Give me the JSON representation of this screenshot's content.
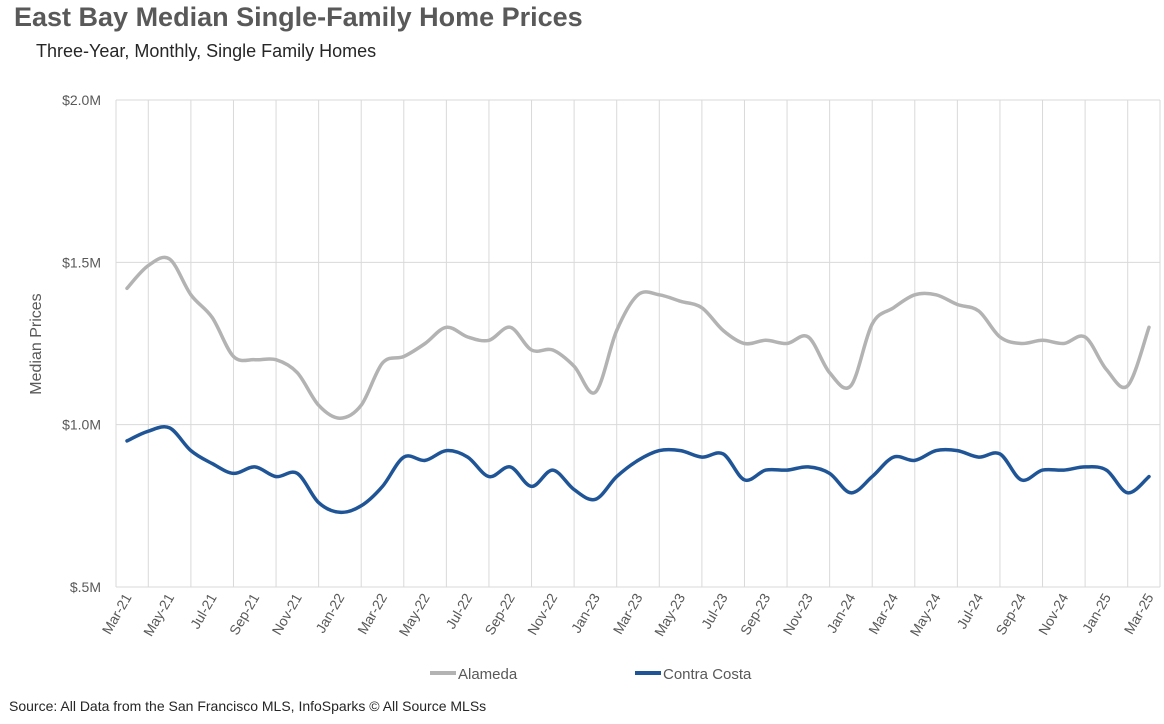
{
  "title": "East Bay Median Single-Family Home Prices",
  "subtitle": "Three-Year, Monthly, Single Family Homes",
  "source": "Source: All Data from the San Francisco MLS, InfoSparks © All Source MLSs",
  "chart_data": {
    "type": "line",
    "ylabel": "Median Prices",
    "ylim": [
      500000,
      2000000
    ],
    "y_ticks": [
      {
        "value": 500000,
        "label": "$.5M"
      },
      {
        "value": 1000000,
        "label": "$1.0M"
      },
      {
        "value": 1500000,
        "label": "$1.5M"
      },
      {
        "value": 2000000,
        "label": "$2.0M"
      }
    ],
    "x": [
      "Mar-21",
      "Apr-21",
      "May-21",
      "Jun-21",
      "Jul-21",
      "Aug-21",
      "Sep-21",
      "Oct-21",
      "Nov-21",
      "Dec-21",
      "Jan-22",
      "Feb-22",
      "Mar-22",
      "Apr-22",
      "May-22",
      "Jun-22",
      "Jul-22",
      "Aug-22",
      "Sep-22",
      "Oct-22",
      "Nov-22",
      "Dec-22",
      "Jan-23",
      "Feb-23",
      "Mar-23",
      "Apr-23",
      "May-23",
      "Jun-23",
      "Jul-23",
      "Aug-23",
      "Sep-23",
      "Oct-23",
      "Nov-23",
      "Dec-23",
      "Jan-24",
      "Feb-24",
      "Mar-24",
      "Apr-24",
      "May-24",
      "Jun-24",
      "Jul-24",
      "Aug-24",
      "Sep-24",
      "Oct-24",
      "Nov-24",
      "Dec-24",
      "Jan-25",
      "Feb-25",
      "Mar-25"
    ],
    "x_tick_labels": [
      "Mar-21",
      "May-21",
      "Jul-21",
      "Sep-21",
      "Nov-21",
      "Jan-22",
      "Mar-22",
      "May-22",
      "Jul-22",
      "Sep-22",
      "Nov-22",
      "Jan-23",
      "Mar-23",
      "May-23",
      "Jul-23",
      "Sep-23",
      "Nov-23",
      "Jan-24",
      "Mar-24",
      "May-24",
      "Jul-24",
      "Sep-24",
      "Nov-24",
      "Jan-25",
      "Mar-25"
    ],
    "grid": "vertical and horizontal",
    "legend": "bottom-center",
    "series": [
      {
        "name": "Alameda",
        "color": "#b3b3b3",
        "values": [
          1420000,
          1490000,
          1510000,
          1400000,
          1330000,
          1210000,
          1200000,
          1200000,
          1160000,
          1060000,
          1020000,
          1060000,
          1190000,
          1210000,
          1250000,
          1300000,
          1270000,
          1260000,
          1300000,
          1230000,
          1230000,
          1180000,
          1100000,
          1290000,
          1400000,
          1400000,
          1380000,
          1360000,
          1290000,
          1250000,
          1260000,
          1250000,
          1270000,
          1160000,
          1120000,
          1310000,
          1360000,
          1400000,
          1400000,
          1370000,
          1350000,
          1270000,
          1250000,
          1260000,
          1250000,
          1270000,
          1170000,
          1120000,
          1300000
        ]
      },
      {
        "name": "Contra Costa",
        "color": "#1f5597",
        "values": [
          950000,
          980000,
          990000,
          920000,
          880000,
          850000,
          870000,
          840000,
          850000,
          760000,
          730000,
          750000,
          810000,
          900000,
          890000,
          920000,
          900000,
          840000,
          870000,
          810000,
          860000,
          800000,
          770000,
          840000,
          890000,
          920000,
          920000,
          900000,
          910000,
          830000,
          860000,
          860000,
          870000,
          850000,
          790000,
          840000,
          900000,
          890000,
          920000,
          920000,
          900000,
          910000,
          830000,
          860000,
          860000,
          870000,
          860000,
          790000,
          840000
        ]
      }
    ]
  }
}
